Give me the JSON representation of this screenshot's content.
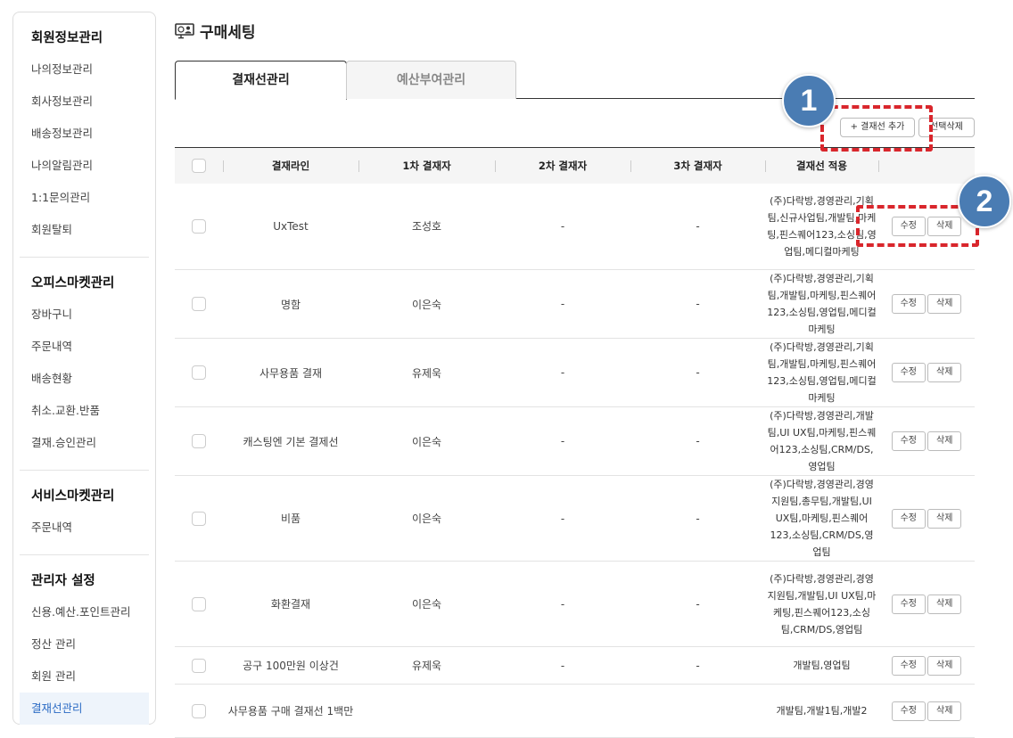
{
  "sidebar": {
    "sections": [
      {
        "title": "회원정보관리",
        "items": [
          "나의정보관리",
          "회사정보관리",
          "배송정보관리",
          "나의알림관리",
          "1:1문의관리",
          "회원탈퇴"
        ]
      },
      {
        "title": "오피스마켓관리",
        "items": [
          "장바구니",
          "주문내역",
          "배송현황",
          "취소.교환.반품",
          "결재.승인관리"
        ]
      },
      {
        "title": "서비스마켓관리",
        "items": [
          "주문내역"
        ]
      },
      {
        "title": "관리자 설정",
        "items": [
          "신용.예산.포인트관리",
          "정산 관리",
          "회원 관리",
          "결재선관리"
        ]
      }
    ]
  },
  "page": {
    "title": "구매세팅",
    "icon": "monitor-user-icon"
  },
  "tabs": [
    "결재선관리",
    "예산부여관리"
  ],
  "toolbar": {
    "add": "+ 결재선 추가",
    "delete_selected": "선택삭제"
  },
  "table": {
    "headers": [
      "결재라인",
      "1차 결재자",
      "2차 결재자",
      "3차 결재자",
      "결재선 적용"
    ],
    "edit": "수정",
    "delete": "삭제",
    "rows": [
      {
        "name": "UxTest",
        "a1": "조성호",
        "a2": "-",
        "a3": "-",
        "apply": "(주)다락방,경영관리,기획팀,신규사업팀,개발팀,마케팅,핀스퀘어123,소싱팀,영업팀,메디컬마케팅"
      },
      {
        "name": "명함",
        "a1": "이은숙",
        "a2": "-",
        "a3": "-",
        "apply": "(주)다락방,경영관리,기획팀,개발팀,마케팅,핀스퀘어123,소싱팀,영업팀,메디컬마케팅"
      },
      {
        "name": "사무용품 결재",
        "a1": "유제욱",
        "a2": "-",
        "a3": "-",
        "apply": "(주)다락방,경영관리,기획팀,개발팀,마케팅,핀스퀘어123,소싱팀,영업팀,메디컬마케팅"
      },
      {
        "name": "캐스팅엔 기본 결제선",
        "a1": "이은숙",
        "a2": "-",
        "a3": "-",
        "apply": "(주)다락방,경영관리,개발팀,UI UX팀,마케팅,핀스퀘어123,소싱팀,CRM/DS,영업팀"
      },
      {
        "name": "비품",
        "a1": "이은숙",
        "a2": "-",
        "a3": "-",
        "apply": "(주)다락방,경영관리,경영지원팀,총무팀,개발팀,UI UX팀,마케팅,핀스퀘어123,소싱팀,CRM/DS,영업팀"
      },
      {
        "name": "화환결재",
        "a1": "이은숙",
        "a2": "-",
        "a3": "-",
        "apply": "(주)다락방,경영관리,경영지원팀,개발팀,UI UX팀,마케팅,핀스퀘어123,소싱팀,CRM/DS,영업팀"
      },
      {
        "name": "공구 100만원 이상건",
        "a1": "유제욱",
        "a2": "-",
        "a3": "-",
        "apply": "개발팀,영업팀"
      },
      {
        "name": "사무용품 구매 결재선 1백만",
        "a1": "",
        "a2": "",
        "a3": "",
        "apply": "개발팀,개발1팀,개발2"
      }
    ]
  },
  "annotations": [
    "1",
    "2"
  ],
  "colors": {
    "annotation_badge": "#4a7cb3",
    "annotation_dash": "#d9262c",
    "active_sidebar": "#2a6ac4"
  }
}
